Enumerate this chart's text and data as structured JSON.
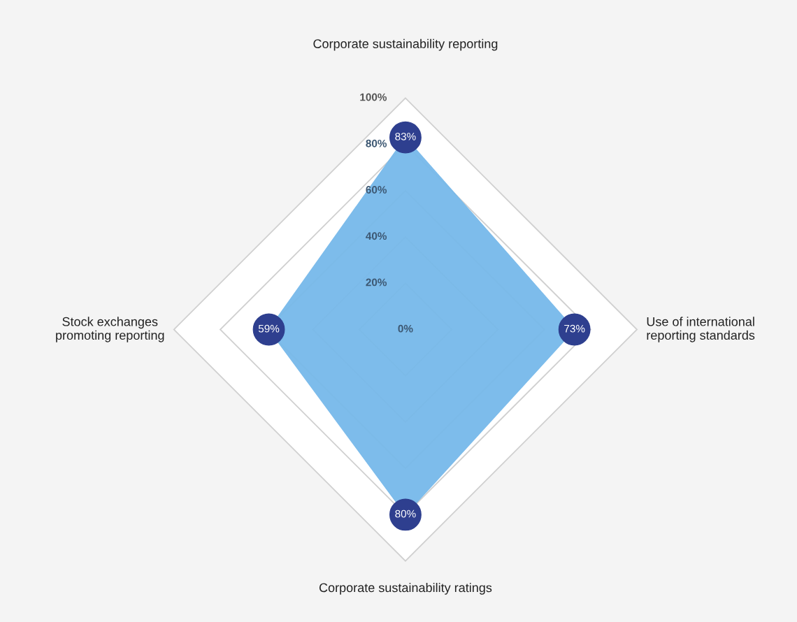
{
  "chart_data": {
    "type": "radar",
    "categories": [
      "Corporate sustainability reporting",
      "Use of international\nreporting standards",
      "Corporate sustainability ratings",
      "Stock exchanges\npromoting reporting"
    ],
    "series": [
      {
        "color": "#77b9ea",
        "values": [
          83,
          73,
          80,
          59
        ],
        "value_labels": [
          "83%",
          "73%",
          "80%",
          "59%"
        ]
      }
    ],
    "ylim": [
      0,
      100
    ],
    "yticks": [
      {
        "value": 0,
        "label": "0%"
      },
      {
        "value": 20,
        "label": "20%"
      },
      {
        "value": 40,
        "label": "40%"
      },
      {
        "value": 60,
        "label": "60%"
      },
      {
        "value": 80,
        "label": "80%"
      },
      {
        "value": 100,
        "label": "100%"
      }
    ],
    "grid": true,
    "marker": "circle"
  }
}
